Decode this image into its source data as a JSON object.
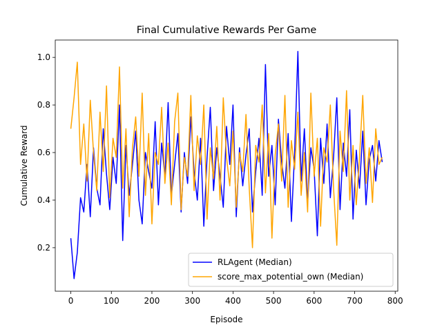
{
  "chart_data": {
    "type": "line",
    "title": "Final Cumulative Rewards Per Game",
    "x_label": "Episode",
    "y_label": "Cumulative Reward",
    "x": [
      0,
      8,
      16,
      24,
      32,
      40,
      48,
      56,
      64,
      72,
      80,
      88,
      96,
      104,
      112,
      120,
      128,
      136,
      144,
      152,
      160,
      168,
      176,
      184,
      192,
      200,
      208,
      216,
      224,
      232,
      240,
      248,
      256,
      264,
      272,
      280,
      288,
      296,
      304,
      312,
      320,
      328,
      336,
      344,
      352,
      360,
      368,
      376,
      384,
      392,
      400,
      408,
      416,
      424,
      432,
      440,
      448,
      456,
      464,
      472,
      480,
      488,
      496,
      504,
      512,
      520,
      528,
      536,
      544,
      552,
      560,
      568,
      576,
      584,
      592,
      600,
      608,
      616,
      624,
      632,
      640,
      648,
      656,
      664,
      672,
      680,
      688,
      696,
      704,
      712,
      720,
      728,
      736,
      744,
      752,
      760,
      768
    ],
    "series": [
      {
        "name": "RLAgent (Median)",
        "color": "#0000ff",
        "values": [
          0.24,
          0.07,
          0.18,
          0.41,
          0.35,
          0.55,
          0.33,
          0.62,
          0.45,
          0.38,
          0.7,
          0.51,
          0.36,
          0.58,
          0.47,
          0.8,
          0.23,
          0.63,
          0.42,
          0.55,
          0.69,
          0.4,
          0.3,
          0.6,
          0.52,
          0.45,
          0.73,
          0.38,
          0.64,
          0.5,
          0.81,
          0.42,
          0.55,
          0.68,
          0.35,
          0.6,
          0.47,
          0.75,
          0.52,
          0.4,
          0.66,
          0.29,
          0.58,
          0.79,
          0.44,
          0.62,
          0.5,
          0.37,
          0.71,
          0.55,
          0.8,
          0.33,
          0.62,
          0.46,
          0.59,
          0.7,
          0.35,
          0.52,
          0.66,
          0.42,
          0.97,
          0.5,
          0.63,
          0.38,
          0.74,
          0.56,
          0.45,
          0.68,
          0.31,
          0.6,
          1.025,
          0.48,
          0.7,
          0.39,
          0.62,
          0.53,
          0.25,
          0.66,
          0.47,
          0.72,
          0.41,
          0.58,
          0.83,
          0.36,
          0.64,
          0.5,
          0.78,
          0.32,
          0.61,
          0.45,
          0.69,
          0.38,
          0.57,
          0.63,
          0.48,
          0.65,
          0.56
        ]
      },
      {
        "name": "score_max_potential_own (Median)",
        "color": "#ffa500",
        "values": [
          0.7,
          0.83,
          0.98,
          0.55,
          0.72,
          0.48,
          0.82,
          0.6,
          0.44,
          0.77,
          0.52,
          0.88,
          0.41,
          0.66,
          0.58,
          0.96,
          0.45,
          0.7,
          0.33,
          0.62,
          0.75,
          0.5,
          0.85,
          0.42,
          0.68,
          0.3,
          0.6,
          0.55,
          0.79,
          0.47,
          0.64,
          0.38,
          0.73,
          0.85,
          0.36,
          0.58,
          0.5,
          0.84,
          0.44,
          0.67,
          0.55,
          0.8,
          0.32,
          0.62,
          0.49,
          0.71,
          0.4,
          0.83,
          0.58,
          0.46,
          0.69,
          0.37,
          0.6,
          0.52,
          0.76,
          0.45,
          0.2,
          0.63,
          0.56,
          0.8,
          0.43,
          0.68,
          0.24,
          0.59,
          0.72,
          0.48,
          0.84,
          0.37,
          0.65,
          0.53,
          0.77,
          0.42,
          0.6,
          0.35,
          0.85,
          0.5,
          0.66,
          0.29,
          0.62,
          0.56,
          0.8,
          0.45,
          0.21,
          0.69,
          0.52,
          0.86,
          0.4,
          0.63,
          0.38,
          0.58,
          0.84,
          0.47,
          0.62,
          0.39,
          0.7,
          0.55,
          0.58
        ]
      }
    ],
    "xlim": [
      -38.4,
      806.4
    ],
    "ylim": [
      0.017,
      1.073
    ],
    "xticks": [
      0,
      100,
      200,
      300,
      400,
      500,
      600,
      700,
      800
    ],
    "yticks": [
      0.2,
      0.4,
      0.6,
      0.8,
      {
        "value": 1,
        "label": "1.0"
      }
    ],
    "legend_position": "lower right"
  }
}
